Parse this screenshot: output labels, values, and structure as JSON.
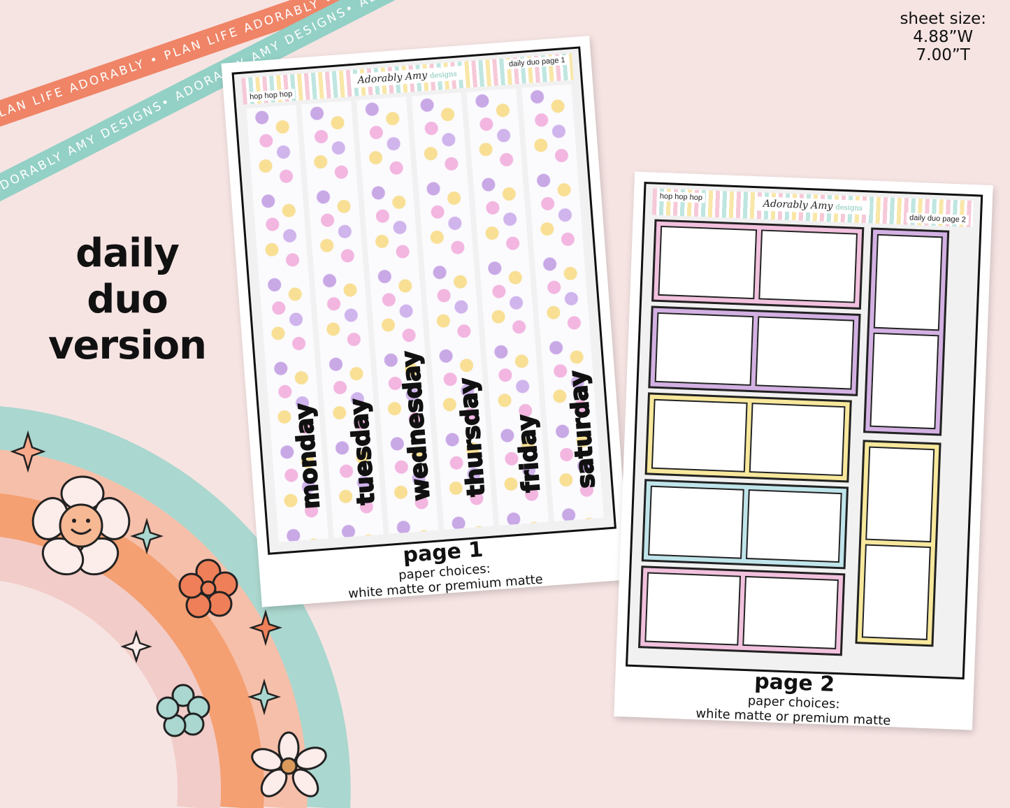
{
  "ribbons": {
    "coral": "PLAN LIFE ADORABLY • PLAN LIFE ADORABLY • PLAN LIFE ADORABLY •",
    "teal": "ADORABLY AMY DESIGNS• ADORABLY AMY DESIGNS• ADORABLY AMY DESIGNS•"
  },
  "sheet_size": {
    "label": "sheet size:",
    "width": "4.88”W",
    "height": "7.00”T"
  },
  "version": {
    "line1": "daily",
    "line2": "duo",
    "line3": "version"
  },
  "page1": {
    "header_left": "hop hop hop",
    "header_brand": "Adorably Amy",
    "header_brand_small": "designs",
    "header_right": "daily duo page 1",
    "days": [
      "monday",
      "tuesday",
      "wednesday",
      "thursday",
      "friday",
      "saturday"
    ],
    "title": "page 1",
    "paper_label": "paper choices:",
    "paper_options": "white matte or premium matte"
  },
  "page2": {
    "header_left": "hop hop hop",
    "header_brand": "Adorably Amy",
    "header_brand_small": "designs",
    "header_right": "daily duo page 2",
    "title": "page 2",
    "paper_label": "paper choices:",
    "paper_options": "white matte or premium matte"
  },
  "colors": {
    "background": "#f6e4e3",
    "coral": "#ef8467",
    "teal": "#93d0c5",
    "pink": "#f2b6e0",
    "lavender": "#c9a8e6",
    "yellow": "#f8df94",
    "aqua": "#bfe6e0"
  }
}
